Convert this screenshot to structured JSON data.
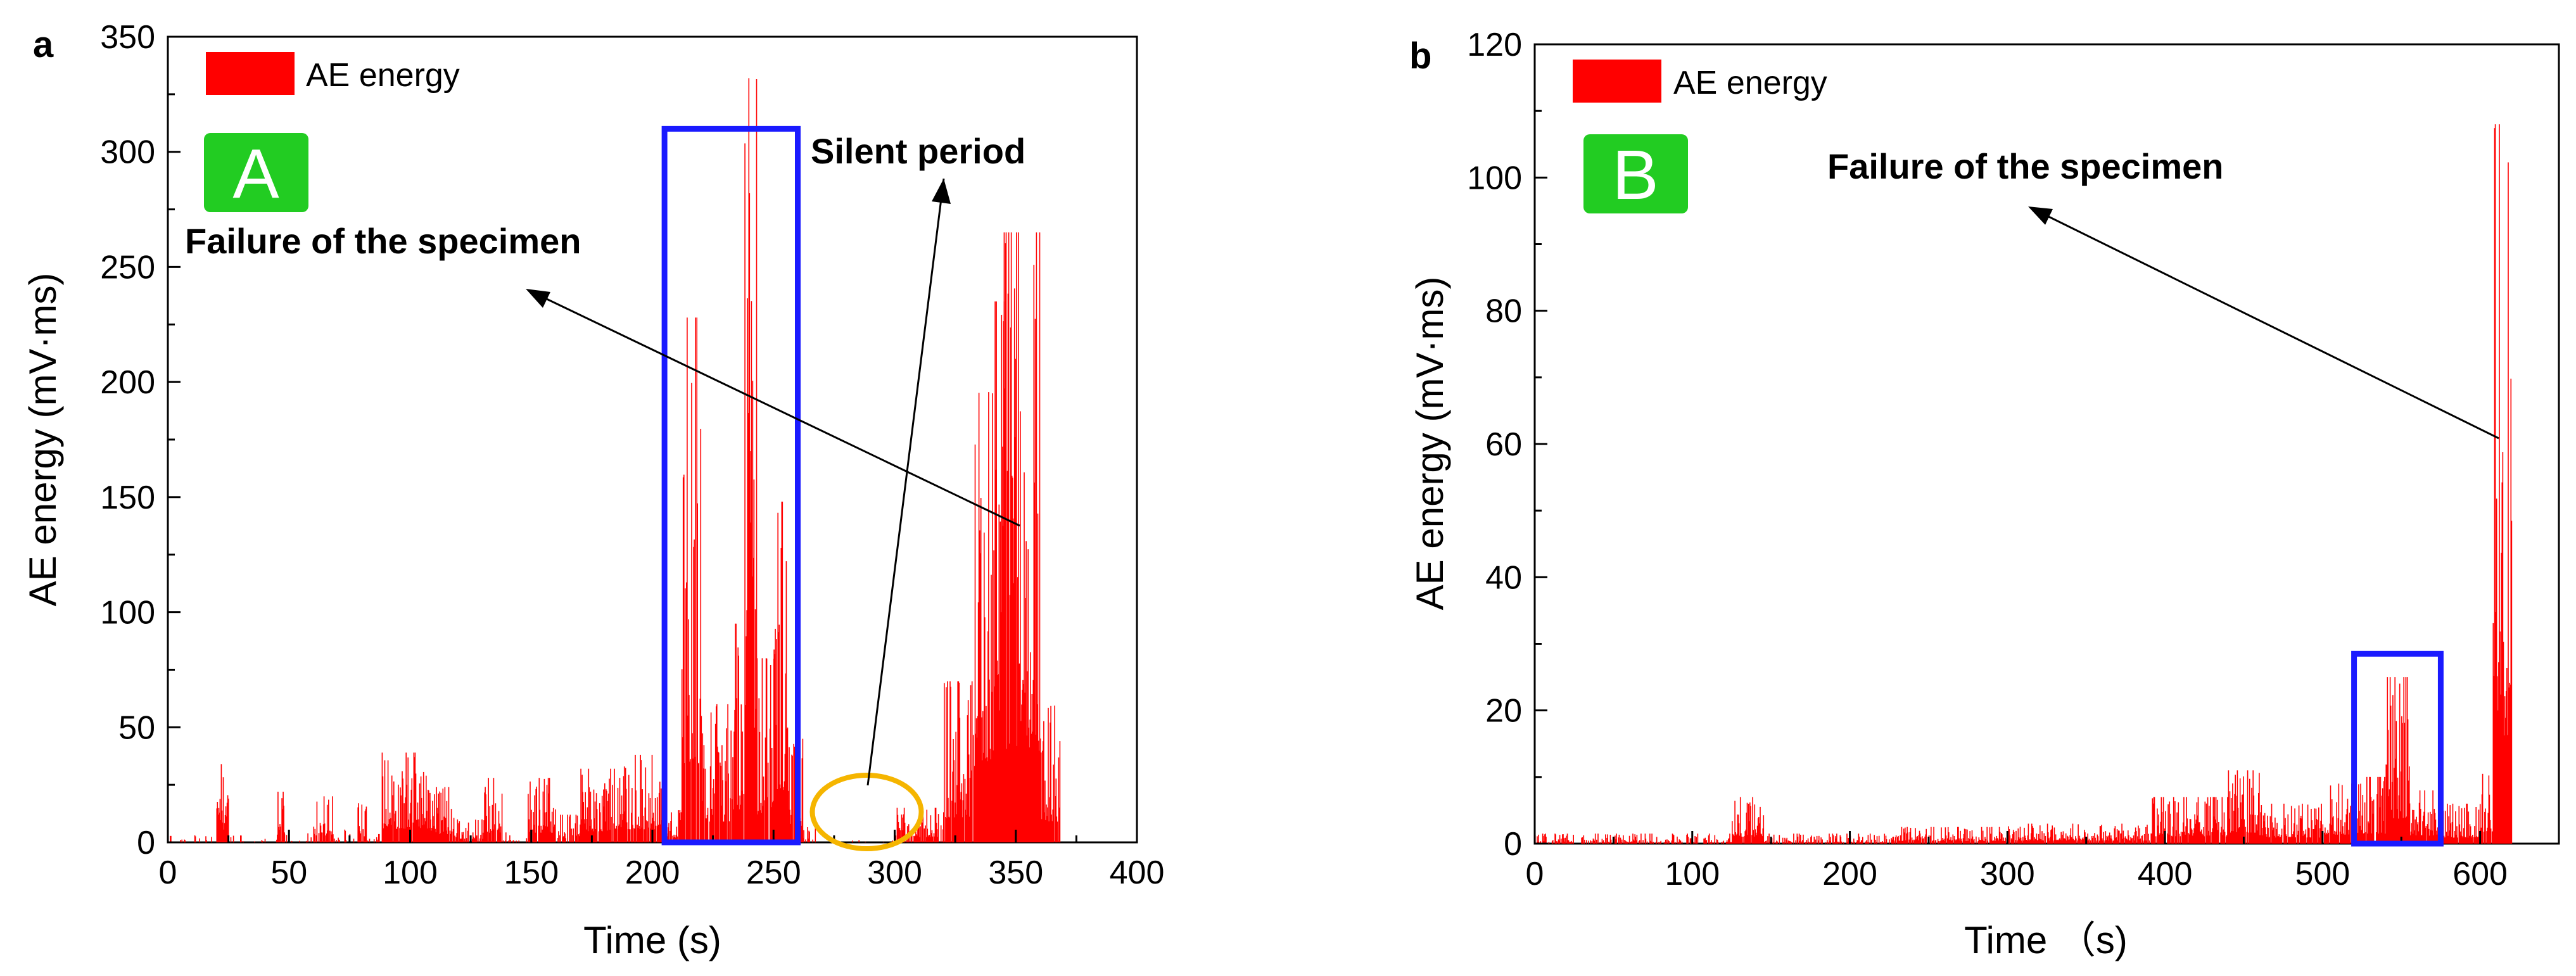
{
  "colors": {
    "bar": "#ff0000",
    "box": "#1a1aff",
    "ellipse": "#f5b500",
    "badge": "#22cc22",
    "axis": "#000000"
  },
  "chart_data": [
    {
      "type": "bar",
      "panel_letter": "a",
      "badge": "A",
      "xlabel": "Time (s)",
      "ylabel": "AE energy (mV·ms)",
      "xlim": [
        0,
        400
      ],
      "ylim": [
        0,
        350
      ],
      "xticks": [
        0,
        50,
        100,
        150,
        200,
        250,
        300,
        350,
        400
      ],
      "yticks": [
        0,
        50,
        100,
        150,
        200,
        250,
        300,
        350
      ],
      "legend": "AE energy",
      "annotations": [
        "Silent period",
        "Failure of the specimen"
      ],
      "highlight_box_x": [
        205,
        260
      ],
      "highlight_box_y": [
        0,
        310
      ],
      "silent_period_x": [
        277,
        300
      ],
      "series": [
        {
          "name": "AE energy",
          "segments": [
            {
              "x0": 0,
              "x1": 20,
              "max": 5,
              "density": 0.12
            },
            {
              "x0": 20,
              "x1": 25,
              "max": 34,
              "density": 0.9
            },
            {
              "x0": 25,
              "x1": 45,
              "max": 3,
              "density": 0.12
            },
            {
              "x0": 45,
              "x1": 48,
              "max": 22,
              "density": 0.9
            },
            {
              "x0": 48,
              "x1": 60,
              "max": 4,
              "density": 0.15
            },
            {
              "x0": 60,
              "x1": 68,
              "max": 20,
              "density": 0.8
            },
            {
              "x0": 68,
              "x1": 78,
              "max": 6,
              "density": 0.3
            },
            {
              "x0": 78,
              "x1": 82,
              "max": 17,
              "density": 0.8
            },
            {
              "x0": 82,
              "x1": 88,
              "max": 4,
              "density": 0.3
            },
            {
              "x0": 88,
              "x1": 108,
              "max": 39,
              "density": 0.95
            },
            {
              "x0": 108,
              "x1": 118,
              "max": 24,
              "density": 0.9
            },
            {
              "x0": 118,
              "x1": 130,
              "max": 10,
              "density": 0.7
            },
            {
              "x0": 130,
              "x1": 138,
              "max": 28,
              "density": 0.9
            },
            {
              "x0": 138,
              "x1": 148,
              "max": 5,
              "density": 0.3
            },
            {
              "x0": 148,
              "x1": 160,
              "max": 28,
              "density": 0.9
            },
            {
              "x0": 160,
              "x1": 170,
              "max": 12,
              "density": 0.6
            },
            {
              "x0": 170,
              "x1": 185,
              "max": 32,
              "density": 0.95
            },
            {
              "x0": 185,
              "x1": 205,
              "max": 38,
              "density": 0.95
            },
            {
              "x0": 205,
              "x1": 212,
              "max": 14,
              "density": 0.8
            },
            {
              "x0": 212,
              "x1": 220,
              "max": 228,
              "density": 0.95
            },
            {
              "x0": 220,
              "x1": 233,
              "max": 60,
              "density": 0.9
            },
            {
              "x0": 233,
              "x1": 238,
              "max": 95,
              "density": 0.95
            },
            {
              "x0": 238,
              "x1": 243,
              "max": 332,
              "density": 1.0
            },
            {
              "x0": 243,
              "x1": 250,
              "max": 80,
              "density": 0.9
            },
            {
              "x0": 250,
              "x1": 256,
              "max": 148,
              "density": 0.95
            },
            {
              "x0": 256,
              "x1": 262,
              "max": 45,
              "density": 0.9
            },
            {
              "x0": 262,
              "x1": 268,
              "max": 8,
              "density": 0.5
            },
            {
              "x0": 268,
              "x1": 300,
              "max": 1,
              "density": 0.06
            },
            {
              "x0": 300,
              "x1": 320,
              "max": 15,
              "density": 0.75
            },
            {
              "x0": 320,
              "x1": 333,
              "max": 70,
              "density": 0.9
            },
            {
              "x0": 333,
              "x1": 345,
              "max": 235,
              "density": 1.0
            },
            {
              "x0": 345,
              "x1": 360,
              "max": 265,
              "density": 1.0
            },
            {
              "x0": 360,
              "x1": 368,
              "max": 60,
              "density": 0.9
            }
          ]
        }
      ]
    },
    {
      "type": "bar",
      "panel_letter": "b",
      "badge": "B",
      "xlabel": "Time （s)",
      "ylabel": "AE energy (mV·ms)",
      "xlim": [
        0,
        650
      ],
      "ylim": [
        0,
        120
      ],
      "xticks": [
        0,
        100,
        200,
        300,
        400,
        500,
        600
      ],
      "yticks": [
        0,
        20,
        40,
        60,
        80,
        100,
        120
      ],
      "legend": "AE energy",
      "annotations": [
        "Failure of the specimen"
      ],
      "highlight_box_x": [
        520,
        575
      ],
      "highlight_box_y": [
        0,
        28.5
      ],
      "series": [
        {
          "name": "AE energy",
          "segments": [
            {
              "x0": 0,
              "x1": 125,
              "max": 1.5,
              "density": 0.6
            },
            {
              "x0": 125,
              "x1": 145,
              "max": 7,
              "density": 0.9
            },
            {
              "x0": 145,
              "x1": 230,
              "max": 1.5,
              "density": 0.6
            },
            {
              "x0": 230,
              "x1": 300,
              "max": 2.5,
              "density": 0.8
            },
            {
              "x0": 300,
              "x1": 390,
              "max": 3,
              "density": 0.85
            },
            {
              "x0": 390,
              "x1": 440,
              "max": 7,
              "density": 0.9
            },
            {
              "x0": 440,
              "x1": 460,
              "max": 11,
              "density": 0.9
            },
            {
              "x0": 460,
              "x1": 500,
              "max": 6,
              "density": 0.9
            },
            {
              "x0": 500,
              "x1": 520,
              "max": 9,
              "density": 0.9
            },
            {
              "x0": 520,
              "x1": 540,
              "max": 10,
              "density": 0.9
            },
            {
              "x0": 540,
              "x1": 555,
              "max": 25,
              "density": 1.0
            },
            {
              "x0": 555,
              "x1": 575,
              "max": 8,
              "density": 0.95
            },
            {
              "x0": 575,
              "x1": 600,
              "max": 6,
              "density": 0.95
            },
            {
              "x0": 600,
              "x1": 608,
              "max": 12,
              "density": 0.95
            },
            {
              "x0": 608,
              "x1": 620,
              "max": 108,
              "density": 1.0
            }
          ]
        }
      ]
    }
  ]
}
